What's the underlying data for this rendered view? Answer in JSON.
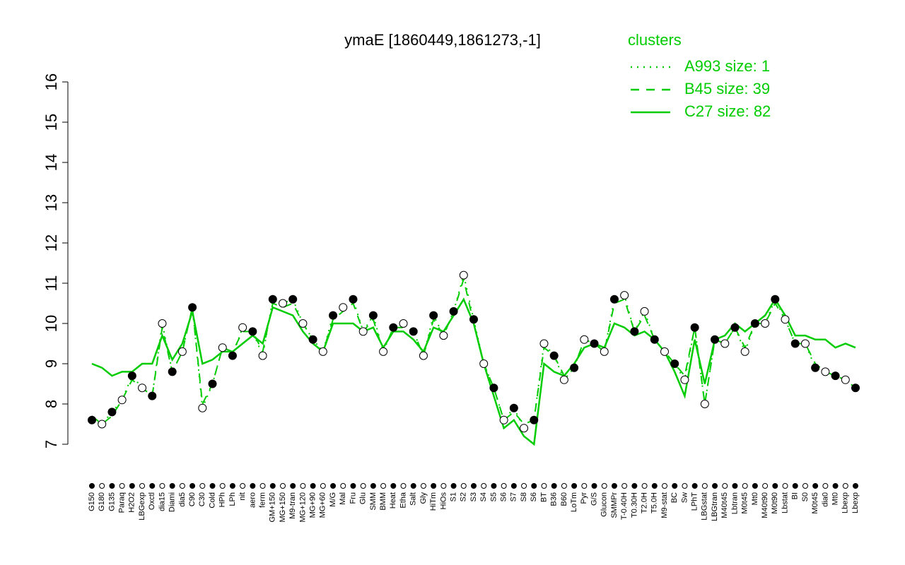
{
  "chart_data": {
    "type": "line",
    "title": "ymaE [1860449,1861273,-1]",
    "legend_title": "clusters",
    "legend_position": "top-right",
    "categories": [
      "G150",
      "G180",
      "G135",
      "Paraq",
      "H2O2",
      "LBGexp",
      "Oxctl",
      "dia15",
      "Diami",
      "dia5",
      "C90",
      "C30",
      "Cold",
      "HPh",
      "LPh",
      "nit",
      "aero",
      "ferm",
      "GM+150",
      "MG+150",
      "M9-tran",
      "MG+120",
      "MG+90",
      "MG+60",
      "M/G",
      "Mal",
      "Fru",
      "Glu",
      "SMM",
      "BMM",
      "Heat",
      "Etha",
      "Salt",
      "Gly",
      "HiTm",
      "HiOs",
      "S1",
      "S2",
      "S3",
      "S4",
      "S5",
      "S6",
      "S7",
      "S8",
      "S6",
      "BT",
      "B36",
      "B60",
      "LoTm",
      "Pyr",
      "G/S",
      "Glucon",
      "SMMPr",
      "T-0.40H",
      "T0.30H",
      "T2.0H",
      "T5.0H",
      "M9-stat",
      "BC",
      "Sw",
      "LPhT",
      "LBGstat",
      "LBGtran",
      "M40t45",
      "Lbtran",
      "M0t45",
      "Mt0",
      "M40t90",
      "M0t90",
      "Lbstat",
      "BI",
      "S0",
      "M0t45",
      "dia0",
      "Mt0",
      "Lbexp",
      "Lbexp"
    ],
    "series": [
      {
        "name": "A993 size: 1",
        "color": "#00cc00",
        "style": "dotted",
        "markers": true,
        "values": [
          7.6,
          7.5,
          7.8,
          8.1,
          8.7,
          8.4,
          8.2,
          10.0,
          8.8,
          9.3,
          10.4,
          7.9,
          8.5,
          9.4,
          9.2,
          9.9,
          9.8,
          9.2,
          10.6,
          10.5,
          10.6,
          10.0,
          9.6,
          9.3,
          10.2,
          10.4,
          10.6,
          9.8,
          10.2,
          9.3,
          9.9,
          10.0,
          9.8,
          9.2,
          10.2,
          9.7,
          10.3,
          11.2,
          10.1,
          9.0,
          8.4,
          7.6,
          7.9,
          7.4,
          7.6,
          9.5,
          9.2,
          8.6,
          8.9,
          9.6,
          9.5,
          9.3,
          10.6,
          10.7,
          9.8,
          10.3,
          9.6,
          9.3,
          9.0,
          8.6,
          9.9,
          8.0,
          9.6,
          9.5,
          9.9,
          9.3,
          10.0,
          10.0,
          10.6,
          10.1,
          9.5,
          9.5,
          8.9,
          8.8,
          8.7,
          8.6,
          8.4
        ]
      },
      {
        "name": "B45 size: 39",
        "color": "#00cc00",
        "style": "dashed",
        "markers": false,
        "values": [
          7.7,
          7.5,
          7.7,
          8.1,
          8.6,
          8.4,
          8.2,
          9.9,
          8.8,
          9.3,
          10.4,
          8.0,
          8.5,
          9.4,
          9.3,
          9.8,
          9.8,
          9.3,
          10.5,
          10.4,
          10.5,
          10.0,
          9.6,
          9.3,
          10.1,
          10.3,
          10.5,
          9.8,
          10.1,
          9.3,
          9.9,
          9.9,
          9.8,
          9.2,
          10.1,
          9.7,
          10.3,
          11.1,
          10.0,
          9.0,
          8.4,
          7.6,
          7.8,
          7.5,
          7.6,
          9.4,
          9.2,
          8.7,
          8.9,
          9.6,
          9.5,
          9.3,
          10.5,
          10.6,
          9.8,
          10.2,
          9.6,
          9.3,
          9.0,
          8.7,
          9.9,
          8.0,
          9.6,
          9.5,
          9.9,
          9.4,
          10.0,
          10.0,
          10.5,
          10.1,
          9.5,
          9.5,
          9.0,
          8.8,
          8.7,
          8.6,
          8.4
        ]
      },
      {
        "name": "C27 size: 82",
        "color": "#00cc00",
        "style": "solid",
        "markers": false,
        "values": [
          9.0,
          8.9,
          8.7,
          8.8,
          8.8,
          9.0,
          9.0,
          9.7,
          9.1,
          9.5,
          10.3,
          9.0,
          9.1,
          9.3,
          9.3,
          9.5,
          9.7,
          9.5,
          10.4,
          10.3,
          10.2,
          9.8,
          9.5,
          9.3,
          10.0,
          10.0,
          10.0,
          9.8,
          9.9,
          9.4,
          9.8,
          9.8,
          9.6,
          9.3,
          9.9,
          9.8,
          10.2,
          10.6,
          10.0,
          9.0,
          8.2,
          7.4,
          7.6,
          7.2,
          7.0,
          9.0,
          8.8,
          8.7,
          9.0,
          9.4,
          9.5,
          9.4,
          10.0,
          9.9,
          9.7,
          9.8,
          9.6,
          9.3,
          8.8,
          8.2,
          9.6,
          8.5,
          9.6,
          9.7,
          10.0,
          9.8,
          10.0,
          10.2,
          10.6,
          10.2,
          9.7,
          9.7,
          9.6,
          9.6,
          9.4,
          9.5,
          9.4
        ]
      }
    ],
    "ylim": [
      7,
      16
    ],
    "yticks": [
      7,
      8,
      9,
      10,
      11,
      12,
      13,
      14,
      15,
      16
    ],
    "grid": false
  }
}
